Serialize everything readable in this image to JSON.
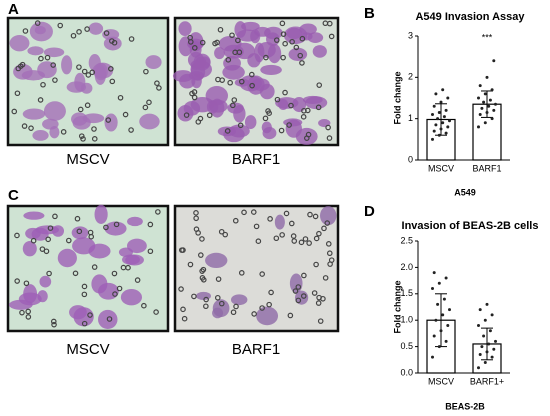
{
  "panel_letters": [
    "A",
    "B",
    "C",
    "D"
  ],
  "image_labels": {
    "A": [
      "MSCV",
      "BARF1"
    ],
    "C": [
      "MSCV",
      "BARF1"
    ]
  },
  "chart_data": [
    {
      "type": "bar",
      "title": "A549 Invasion Assay",
      "categories": [
        "MSCV",
        "BARF1"
      ],
      "values": [
        0.98,
        1.35
      ],
      "errors": [
        0.38,
        0.32
      ],
      "points": [
        [
          0.5,
          0.6,
          0.65,
          0.7,
          0.75,
          0.8,
          0.85,
          0.9,
          0.95,
          1.0,
          1.05,
          1.1,
          1.15,
          1.2,
          1.3,
          1.4,
          1.5,
          1.6,
          1.7
        ],
        [
          0.8,
          0.9,
          1.0,
          1.1,
          1.15,
          1.2,
          1.25,
          1.3,
          1.35,
          1.4,
          1.45,
          1.5,
          1.6,
          1.7,
          1.8,
          2.0,
          2.4
        ]
      ],
      "color": "#ffffff",
      "ylim": [
        0,
        3
      ],
      "yticks": [
        0,
        1,
        2,
        3
      ],
      "ylabel": "Fold change",
      "xlabel": "A549",
      "annotation": "***"
    },
    {
      "type": "bar",
      "title": "Invasion of BEAS-2B cells",
      "categories": [
        "MSCV",
        "BARF1+"
      ],
      "values": [
        1.0,
        0.55
      ],
      "errors": [
        0.5,
        0.3
      ],
      "points": [
        [
          0.3,
          0.5,
          0.6,
          0.7,
          0.8,
          0.9,
          1.0,
          1.1,
          1.2,
          1.3,
          1.4,
          1.6,
          1.7,
          1.8,
          1.9
        ],
        [
          0.1,
          0.2,
          0.3,
          0.35,
          0.4,
          0.45,
          0.5,
          0.55,
          0.6,
          0.7,
          0.8,
          0.9,
          1.0,
          1.1,
          1.2,
          1.3
        ]
      ],
      "color": "#ffffff",
      "ylim": [
        0,
        2.5
      ],
      "yticks": [
        {
          "value": 0,
          "label": "0.0"
        },
        0.5,
        {
          "value": 1,
          "label": "1.0"
        },
        1.5,
        {
          "value": 2,
          "label": "2.0"
        },
        2.5
      ],
      "ylabel": "Fold change",
      "xlabel": "BEAS-2B"
    }
  ]
}
